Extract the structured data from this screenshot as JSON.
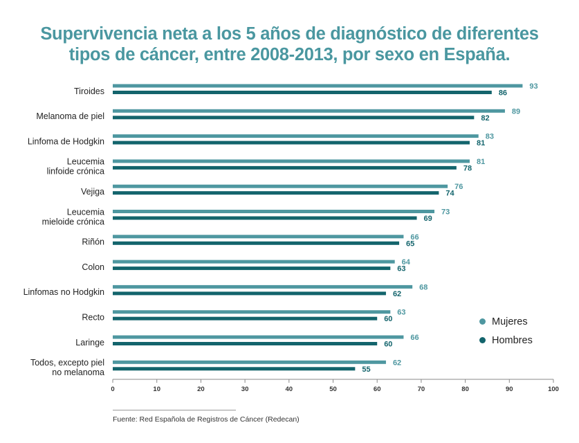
{
  "title_line1": "Supervivencia neta a los 5 años de diagnóstico de diferentes",
  "title_line2": "tipos de cáncer, entre 2008-2013, por sexo en España.",
  "source": "Fuente: Red Española de Registros de Cáncer (Redecan)",
  "colors": {
    "title": "#4a97a0",
    "mujeres": "#4e97a0",
    "hombres": "#13646c",
    "axis": "#888888"
  },
  "chart_data": {
    "type": "bar",
    "orientation": "horizontal",
    "title": "Supervivencia neta a los 5 años de diagnóstico de diferentes tipos de cáncer, entre 2008-2013, por sexo en España.",
    "categories": [
      [
        "Tiroides"
      ],
      [
        "Melanoma de piel"
      ],
      [
        "Linfoma de Hodgkin"
      ],
      [
        "Leucemia",
        "linfoide crónica"
      ],
      [
        "Vejiga"
      ],
      [
        "Leucemia",
        "mieloide crónica"
      ],
      [
        "Riñón"
      ],
      [
        "Colon"
      ],
      [
        "Linfomas no Hodgkin"
      ],
      [
        "Recto"
      ],
      [
        "Laringe"
      ],
      [
        "Todos, excepto piel",
        "no melanoma"
      ]
    ],
    "series": [
      {
        "name": "Mujeres",
        "values": [
          93,
          89,
          83,
          81,
          76,
          73,
          66,
          64,
          68,
          63,
          66,
          62
        ]
      },
      {
        "name": "Hombres",
        "values": [
          86,
          82,
          81,
          78,
          74,
          69,
          65,
          63,
          62,
          60,
          60,
          55
        ]
      }
    ],
    "xlim": [
      0,
      100
    ],
    "xticks": [
      0,
      10,
      20,
      30,
      40,
      50,
      60,
      70,
      80,
      90,
      100
    ],
    "xlabel": "",
    "ylabel": "",
    "grid": false,
    "legend_position": "bottom-right"
  }
}
